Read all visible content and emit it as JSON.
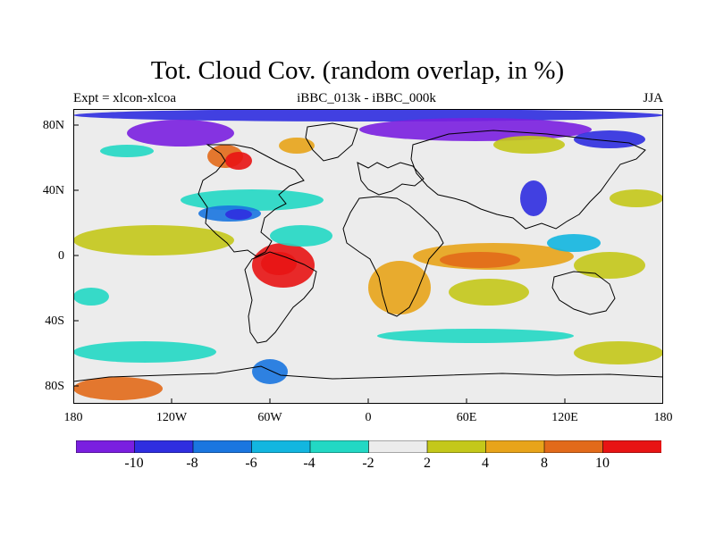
{
  "title": "Tot. Cloud Cov. (random overlap, in %)",
  "subtitle_left": "Expt = xlcon-xlcoa",
  "subtitle_center": "iBBC_013k - iBBC_000k",
  "subtitle_right": "JJA",
  "lat_labels": [
    "80N",
    "40N",
    "0",
    "40S",
    "80S"
  ],
  "lon_labels": [
    "180",
    "120W",
    "60W",
    "0",
    "60E",
    "120E",
    "180"
  ],
  "colorbar": {
    "labels": [
      "-10",
      "-8",
      "-6",
      "-4",
      "-2",
      "2",
      "4",
      "8",
      "10"
    ],
    "colors": [
      "#7a1fe0",
      "#2f2ee0",
      "#1a76e0",
      "#12b6e0",
      "#22d8c4",
      "#ececec",
      "#c4c81a",
      "#e8a41a",
      "#e26a1a",
      "#e81414"
    ]
  },
  "map_colors": {
    "neutral": "#ececec",
    "coast": "#000000"
  }
}
